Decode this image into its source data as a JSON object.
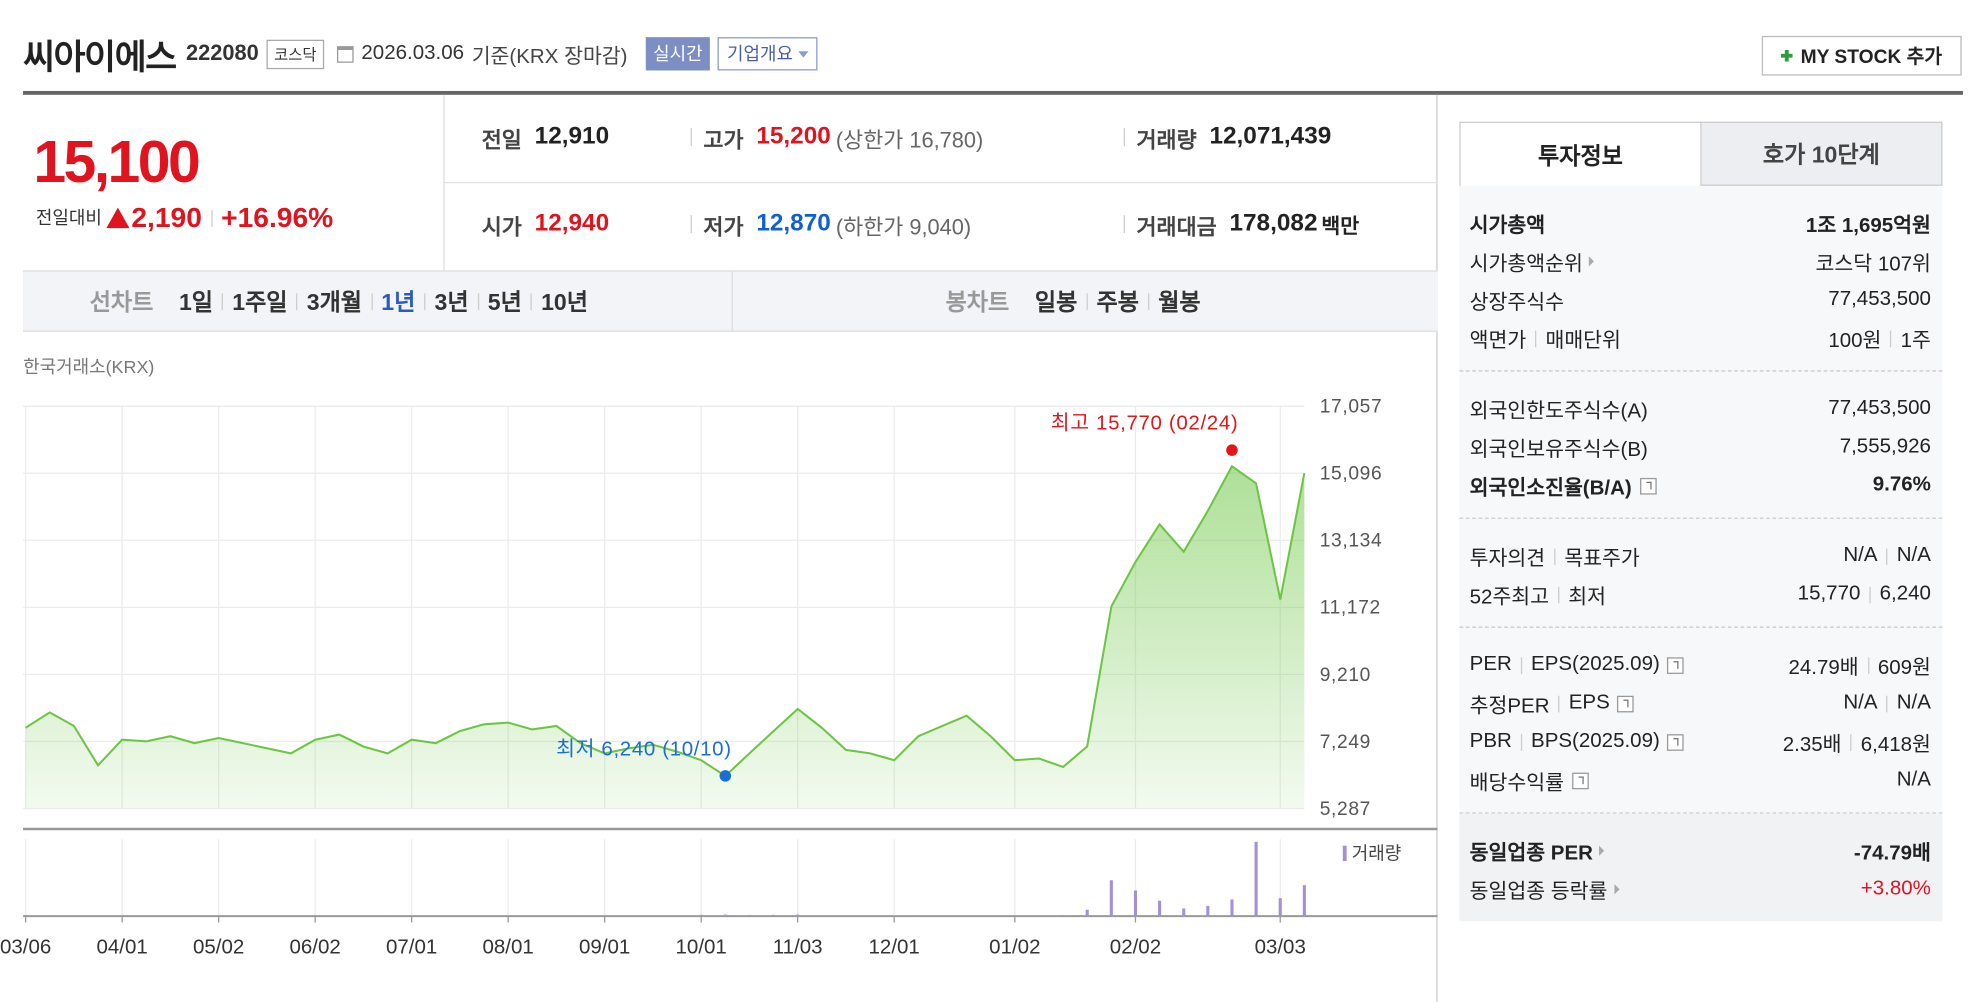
{
  "header": {
    "name": "씨아이에스",
    "code": "222080",
    "market": "코스닥",
    "date": "2026.03.06",
    "basis": "기준(KRX 장마감)",
    "realtime": "실시간",
    "company": "기업개요",
    "my_stock": "MY STOCK 추가"
  },
  "price": {
    "current": "15,100",
    "change_label": "전일대비",
    "change": "2,190",
    "change_pct": "+16.96%",
    "color": "#e0141e"
  },
  "summary": [
    [
      {
        "label": "전일",
        "value": "12,910"
      },
      {
        "label": "고가",
        "value": "15,200",
        "color": "#e0141e",
        "sub": "(상한가 16,780)"
      },
      {
        "label": "거래량",
        "value": "12,071,439"
      }
    ],
    [
      {
        "label": "시가",
        "value": "12,940",
        "color": "#e0141e"
      },
      {
        "label": "저가",
        "value": "12,870",
        "color": "#1160d0",
        "sub": "(하한가 9,040)"
      },
      {
        "label": "거래대금",
        "value": "178,082",
        "unit": "백만"
      }
    ]
  ],
  "chart_tabs": {
    "line_label": "선차트",
    "periods": [
      "1일",
      "1주일",
      "3개월",
      "1년",
      "3년",
      "5년",
      "10년"
    ],
    "selected": 3,
    "candle_label": "봉차트",
    "candles": [
      "일봉",
      "주봉",
      "월봉"
    ]
  },
  "source": "한국거래소(KRX)",
  "chart_data": {
    "type": "line",
    "categories": [
      "03/06",
      null,
      null,
      null,
      "04/01",
      null,
      null,
      null,
      "05/02",
      null,
      null,
      null,
      "06/02",
      null,
      null,
      null,
      "07/01",
      null,
      null,
      null,
      "08/01",
      null,
      null,
      null,
      "09/01",
      null,
      null,
      null,
      "10/01",
      null,
      null,
      null,
      "11/03",
      null,
      null,
      null,
      "12/01",
      null,
      null,
      null,
      null,
      "01/02",
      null,
      null,
      null,
      null,
      "02/02",
      null,
      null,
      null,
      null,
      null,
      "03/03",
      null
    ],
    "series": [
      {
        "color": "#6cc644",
        "values": [
          7650,
          8100,
          7700,
          6550,
          7300,
          7250,
          7400,
          7200,
          7350,
          7200,
          7050,
          6900,
          7300,
          7450,
          7100,
          6900,
          7300,
          7200,
          7550,
          7750,
          7800,
          7600,
          7700,
          7200,
          6900,
          7050,
          7150,
          6950,
          6700,
          6240,
          6900,
          7550,
          8200,
          7650,
          7000,
          6900,
          6700,
          7400,
          7700,
          8000,
          7400,
          6700,
          6750,
          6500,
          7100,
          11200,
          12500,
          13600,
          12800,
          14000,
          15300,
          14800,
          11400,
          15100
        ]
      },
      {
        "name": "거래량",
        "type": "bar",
        "color": "#a48fd8",
        "values": [
          400000,
          350000,
          300000,
          250000,
          300000,
          250000,
          250000,
          300000,
          250000,
          250000,
          200000,
          250000,
          300000,
          250000,
          250000,
          200000,
          250000,
          250000,
          300000,
          250000,
          300000,
          250000,
          250000,
          200000,
          250000,
          250000,
          200000,
          250000,
          500000,
          600000,
          450000,
          500000,
          600000,
          300000,
          250000,
          250000,
          200000,
          300000,
          250000,
          300000,
          250000,
          300000,
          300000,
          400000,
          2500000,
          14000000,
          10000000,
          6000000,
          3000000,
          4000000,
          6500000,
          29000000,
          7000000,
          12071439
        ]
      }
    ],
    "ylim": [
      5287,
      17057
    ],
    "yticks": [
      {
        "value": 5287,
        "label": "5,287"
      },
      {
        "value": 7249,
        "label": "7,249"
      },
      {
        "value": 9210,
        "label": "9,210"
      },
      {
        "value": 11172,
        "label": "11,172"
      },
      {
        "value": 13134,
        "label": "13,134"
      },
      {
        "value": 15096,
        "label": "15,096"
      },
      {
        "value": 17057,
        "label": "17,057"
      }
    ],
    "grid": true,
    "annotations": [
      {
        "label": "최고 15,770 (02/24)",
        "value": 15770,
        "color": "#e5151a"
      },
      {
        "label": "최저 6,240 (10/10)",
        "value": 6240,
        "color": "#1a6fd6"
      }
    ]
  },
  "investment": {
    "tabs": [
      "투자정보",
      "호가 10단계"
    ],
    "groups": [
      {
        "rows": [
          {
            "labels": [
              "시가총액"
            ],
            "values": [
              "1조 1,695억원"
            ],
            "bold": true
          },
          {
            "labels": [
              "시가총액순위"
            ],
            "values": [
              "코스닥 107위"
            ],
            "arrow": true
          },
          {
            "labels": [
              "상장주식수"
            ],
            "values": [
              "77,453,500"
            ]
          },
          {
            "labels": [
              "액면가",
              "매매단위"
            ],
            "values": [
              "100원",
              "1주"
            ]
          }
        ]
      },
      {
        "rows": [
          {
            "labels": [
              "외국인한도주식수(A)"
            ],
            "values": [
              "77,453,500"
            ]
          },
          {
            "labels": [
              "외국인보유주식수(B)"
            ],
            "values": [
              "7,555,926"
            ]
          },
          {
            "labels": [
              "외국인소진율(B/A)"
            ],
            "values": [
              "9.76%"
            ],
            "bold": true,
            "help": true
          }
        ]
      },
      {
        "rows": [
          {
            "labels": [
              "투자의견",
              "목표주가"
            ],
            "values": [
              "N/A",
              "N/A"
            ]
          },
          {
            "labels": [
              "52주최고",
              "최저"
            ],
            "values": [
              "15,770",
              "6,240"
            ]
          }
        ]
      },
      {
        "rows": [
          {
            "labels": [
              "PER",
              "EPS(2025.09)"
            ],
            "values": [
              "24.79배",
              "609원"
            ],
            "help": true
          },
          {
            "labels": [
              "추정PER",
              "EPS"
            ],
            "values": [
              "N/A",
              "N/A"
            ],
            "help": true
          },
          {
            "labels": [
              "PBR",
              "BPS(2025.09)"
            ],
            "values": [
              "2.35배",
              "6,418원"
            ],
            "help": true
          },
          {
            "labels": [
              "배당수익률"
            ],
            "values": [
              "N/A"
            ],
            "help": true
          }
        ]
      },
      {
        "rows": [
          {
            "labels": [
              "동일업종 PER"
            ],
            "values": [
              "-74.79배"
            ],
            "bold": true,
            "arrow": true
          },
          {
            "labels": [
              "동일업종 등락률"
            ],
            "values": [
              "+3.80%"
            ],
            "arrow": true,
            "color": "#e0141e"
          }
        ]
      }
    ]
  }
}
